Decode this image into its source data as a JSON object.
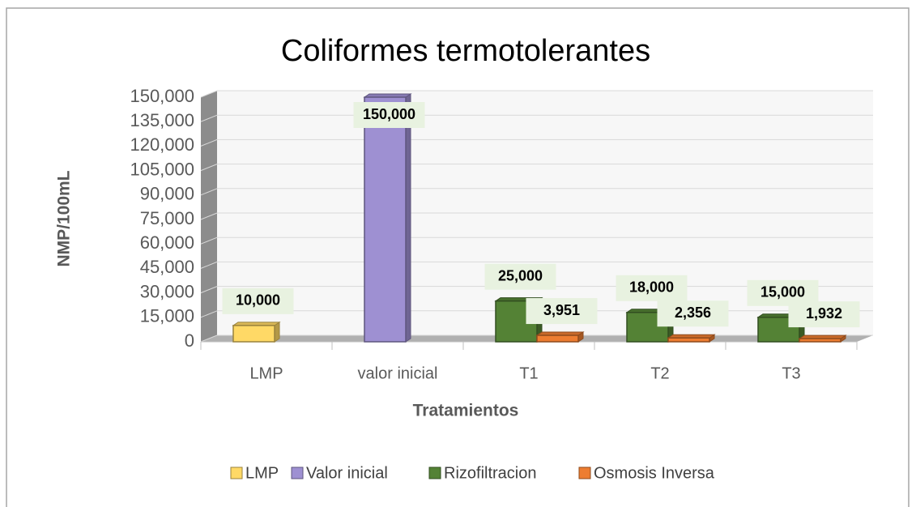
{
  "chart_data": {
    "type": "bar3d",
    "title": "Coliformes termotolerantes",
    "x_label": "Tratamientos",
    "y_label": "NMP/100mL",
    "categories": [
      "LMP",
      "valor inicial",
      "T1",
      "T2",
      "T3"
    ],
    "series": [
      {
        "name": "LMP",
        "color": "#ffd966",
        "values": [
          10000,
          null,
          null,
          null,
          null
        ],
        "value_labels": [
          "10,000",
          null,
          null,
          null,
          null
        ]
      },
      {
        "name": "Valor inicial",
        "color": "#9e90d2",
        "values": [
          null,
          150000,
          null,
          null,
          null
        ],
        "value_labels": [
          null,
          "150,000",
          null,
          null,
          null
        ]
      },
      {
        "name": "Rizofiltracion",
        "color": "#548235",
        "values": [
          null,
          null,
          25000,
          18000,
          15000
        ],
        "value_labels": [
          null,
          null,
          "25,000",
          "18,000",
          "15,000"
        ]
      },
      {
        "name": "Osmosis Inversa",
        "color": "#ed7d31",
        "values": [
          null,
          null,
          3951,
          2356,
          1932
        ],
        "value_labels": [
          null,
          null,
          "3,951",
          "2,356",
          "1,932"
        ]
      }
    ],
    "ylim": [
      0,
      150000
    ],
    "yticks": [
      0,
      {
        "value": 15000,
        "label": "15,000"
      },
      {
        "value": 30000,
        "label": "30,000"
      },
      {
        "value": 45000,
        "label": "45,000"
      },
      {
        "value": 60000,
        "label": "60,000"
      },
      {
        "value": 75000,
        "label": "75,000"
      },
      {
        "value": 90000,
        "label": "90,000"
      },
      {
        "value": 105000,
        "label": "105,000"
      },
      {
        "value": 120000,
        "label": "120,000"
      },
      {
        "value": 135000,
        "label": "135,000"
      },
      {
        "value": 150000,
        "label": "150,000"
      }
    ],
    "grid": true,
    "legend": "bottom"
  }
}
